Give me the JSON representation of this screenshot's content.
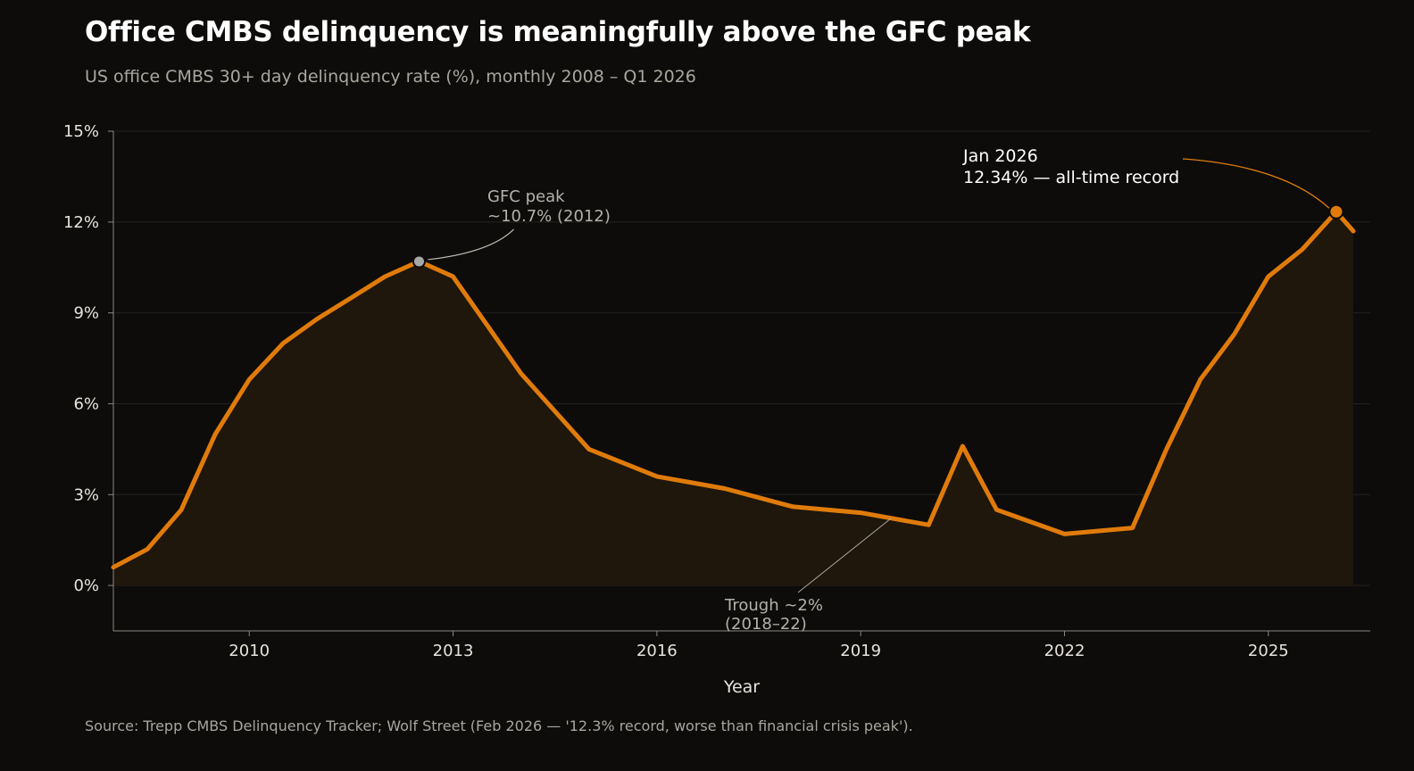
{
  "title": "Office CMBS delinquency is meaningfully above the GFC peak",
  "subtitle": "US office CMBS 30+ day delinquency rate (%), monthly 2008 – Q1 2026",
  "source": "Source: Trepp CMBS Delinquency Tracker; Wolf Street (Feb 2026 — '12.3% record, worse than financial crisis peak').",
  "colors": {
    "background": "#0d0c0a",
    "line": "#e07b0a",
    "area": "#1f160c",
    "gfc_marker": "#a8a8a8",
    "gridline": "#242220"
  },
  "chart_data": {
    "type": "area",
    "xlabel": "Year",
    "ylabel": "",
    "xlim": [
      2008,
      2026.5
    ],
    "ylim": [
      -1.5,
      15
    ],
    "x_ticks": [
      2010,
      2013,
      2016,
      2019,
      2022,
      2025
    ],
    "x_tick_labels": [
      "2010",
      "2013",
      "2016",
      "2019",
      "2022",
      "2025"
    ],
    "y_ticks": [
      0,
      3,
      6,
      9,
      12,
      15
    ],
    "y_tick_labels": [
      "0%",
      "3%",
      "6%",
      "9%",
      "12%",
      "15%"
    ],
    "grid": true,
    "series": [
      {
        "values_x": [
          2008.0,
          2008.5,
          2009.0,
          2009.5,
          2010.0,
          2010.5,
          2011.0,
          2011.5,
          2012.0,
          2012.5,
          2013.0,
          2014.0,
          2015.0,
          2016.0,
          2017.0,
          2018.0,
          2019.0,
          2020.0,
          2020.5,
          2021.0,
          2022.0,
          2023.0,
          2023.5,
          2024.0,
          2024.5,
          2025.0,
          2025.5,
          2026.0,
          2026.25
        ],
        "values_y": [
          0.6,
          1.2,
          2.5,
          5.0,
          6.8,
          8.0,
          8.8,
          9.5,
          10.2,
          10.7,
          10.2,
          7.0,
          4.5,
          3.6,
          3.2,
          2.6,
          2.4,
          2.0,
          4.6,
          2.5,
          1.7,
          1.9,
          4.5,
          6.8,
          8.3,
          10.2,
          11.1,
          12.34,
          11.7
        ]
      }
    ],
    "annotations": [
      {
        "id": "gfc",
        "label_line1": "GFC peak",
        "label_line2": "~10.7% (2012)",
        "x": 2012.5,
        "y": 10.7
      },
      {
        "id": "trough",
        "label_line1": "Trough ~2%",
        "label_line2": "(2018–22)",
        "x": 2019.45,
        "y": 2.4
      },
      {
        "id": "record",
        "label_line1": "Jan 2026",
        "label_line2": "12.34% — all-time record",
        "x": 2026.0,
        "y": 12.34
      }
    ]
  }
}
